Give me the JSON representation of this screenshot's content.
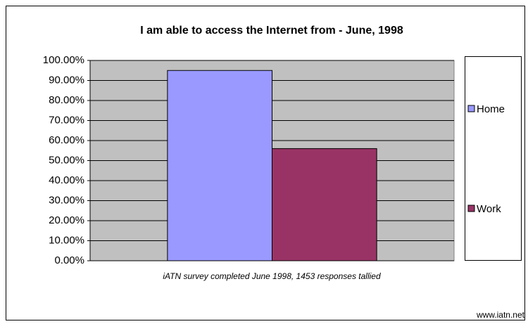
{
  "chart_data": {
    "type": "bar",
    "title": "I am able to access the Internet from - June, 1998",
    "categories": [
      null
    ],
    "series": [
      {
        "name": "Home",
        "color": "#9999ff",
        "values": [
          95
        ]
      },
      {
        "name": "Work",
        "color": "#993366",
        "values": [
          56
        ]
      }
    ],
    "ylim": [
      0,
      100
    ],
    "yticks": [
      {
        "value": 0,
        "label": "0.00%"
      },
      {
        "value": 10,
        "label": "10.00%"
      },
      {
        "value": 20,
        "label": "20.00%"
      },
      {
        "value": 30,
        "label": "30.00%"
      },
      {
        "value": 40,
        "label": "40.00%"
      },
      {
        "value": 50,
        "label": "50.00%"
      },
      {
        "value": 60,
        "label": "60.00%"
      },
      {
        "value": 70,
        "label": "70.00%"
      },
      {
        "value": 80,
        "label": "80.00%"
      },
      {
        "value": 90,
        "label": "90.00%"
      },
      {
        "value": 100,
        "label": "100.00%"
      }
    ],
    "grid": true,
    "legend": "right",
    "annotations": [
      "iATN survey completed June 1998, 1453 responses tallied",
      "www.iatn.net"
    ]
  }
}
